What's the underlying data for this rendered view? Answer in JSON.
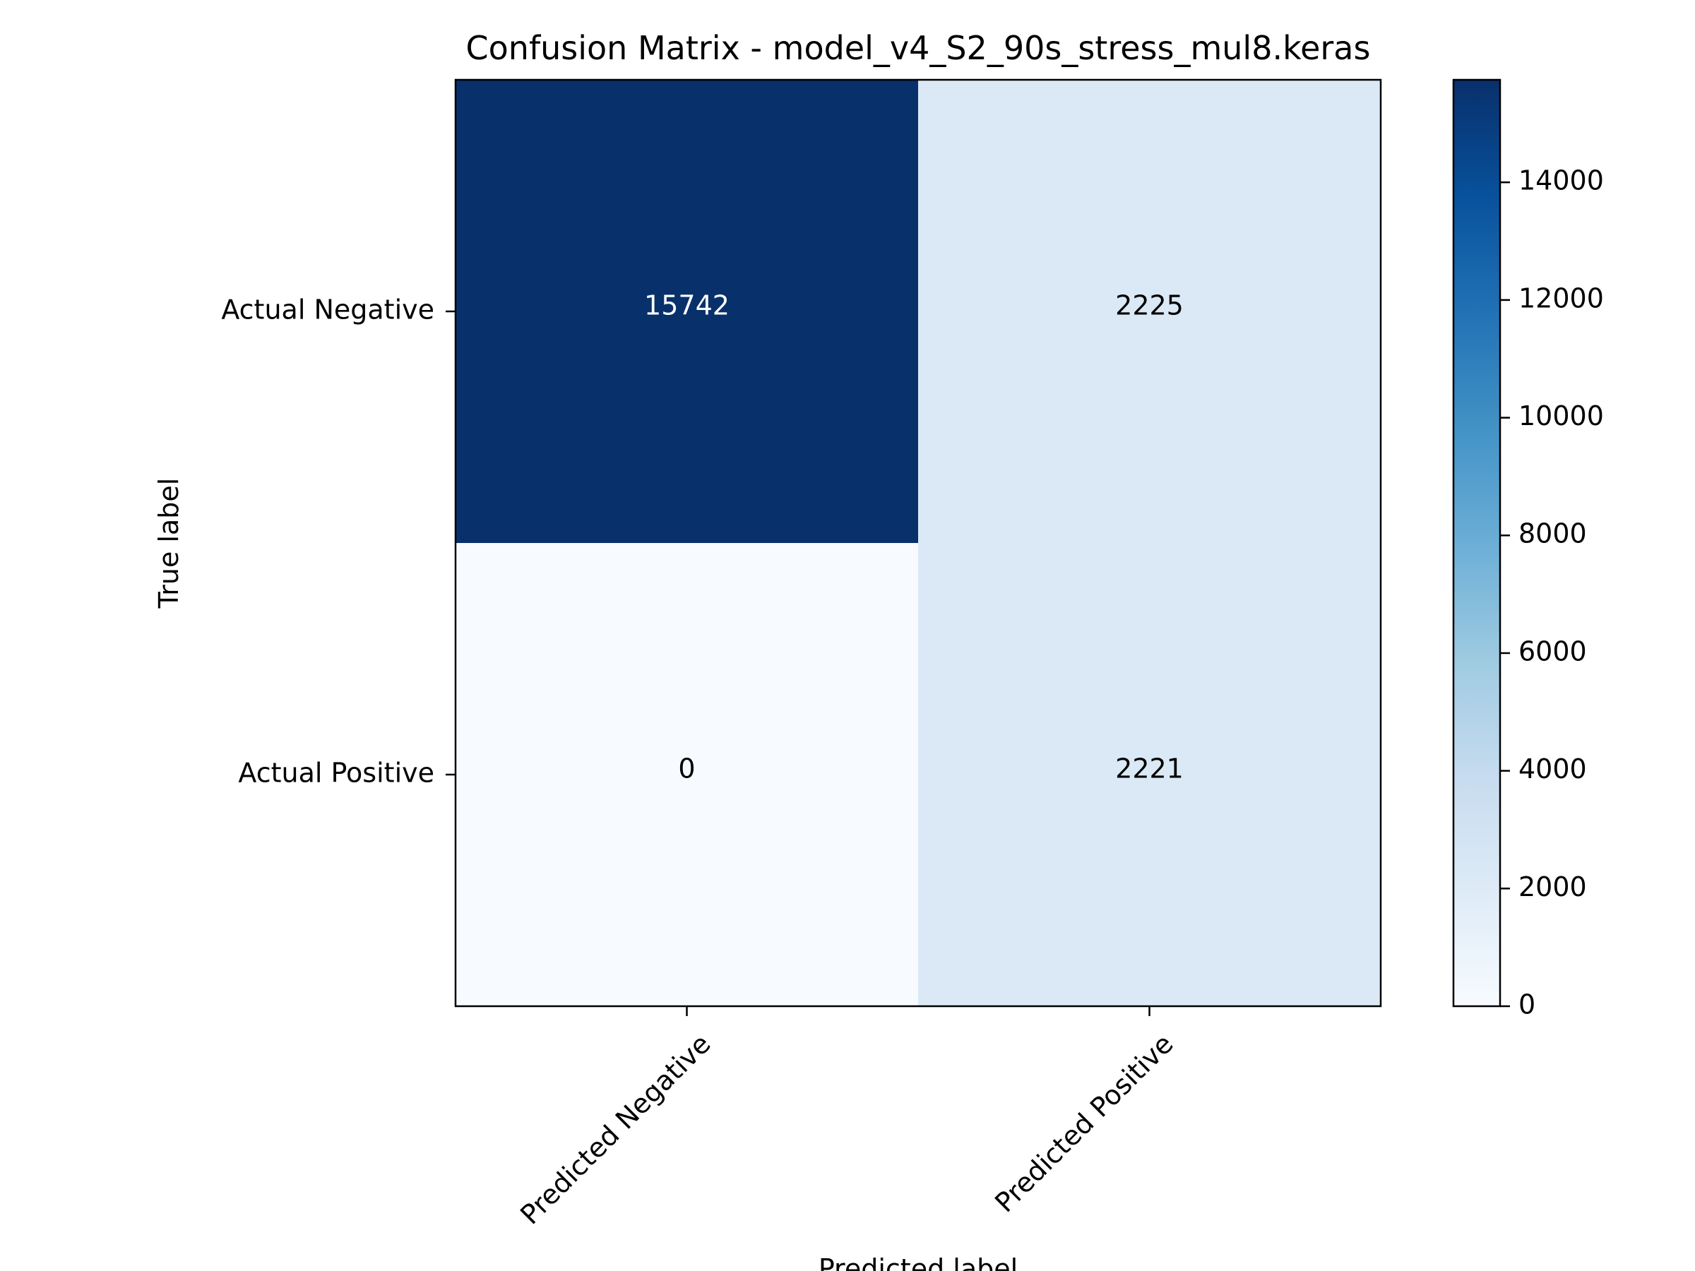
{
  "chart_data": {
    "type": "heatmap",
    "title": "Confusion Matrix - model_v4_S2_90s_stress_mul8.keras",
    "xlabel": "Predicted label",
    "ylabel": "True label",
    "x_categories": [
      "Predicted Negative",
      "Predicted Positive"
    ],
    "y_categories": [
      "Actual Negative",
      "Actual Positive"
    ],
    "values": [
      [
        15742,
        2225
      ],
      [
        0,
        2221
      ]
    ],
    "colormap": "Blues",
    "colorbar": {
      "range": [
        0,
        15742
      ],
      "ticks": [
        0,
        2000,
        4000,
        6000,
        8000,
        10000,
        12000,
        14000
      ]
    },
    "grid": false
  }
}
